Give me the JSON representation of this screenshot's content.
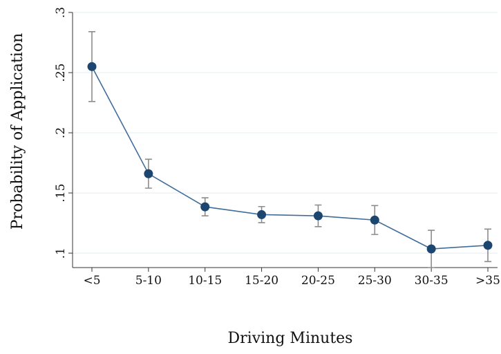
{
  "chart_data": {
    "type": "line",
    "xlabel": "Driving Minutes",
    "ylabel": "Probability of Application",
    "categories": [
      "<5",
      "5-10",
      "10-15",
      "15-20",
      "20-25",
      "25-30",
      "30-35",
      ">35"
    ],
    "values": [
      0.255,
      0.166,
      0.1385,
      0.132,
      0.131,
      0.1275,
      0.1035,
      0.1065
    ],
    "errors": [
      0.029,
      0.012,
      0.0075,
      0.0067,
      0.009,
      0.012,
      0.0155,
      0.0135
    ],
    "color": "#1c4670",
    "error_color": "#8c8c8c",
    "ylim": [
      0.088,
      0.3
    ],
    "yticks": [
      {
        "value": 0.1,
        "label": ".1"
      },
      {
        "value": 0.15,
        "label": ".15"
      },
      {
        "value": 0.2,
        "label": ".2"
      },
      {
        "value": 0.25,
        "label": ".25"
      },
      {
        "value": 0.3,
        "label": ".3"
      }
    ],
    "grid": true
  }
}
